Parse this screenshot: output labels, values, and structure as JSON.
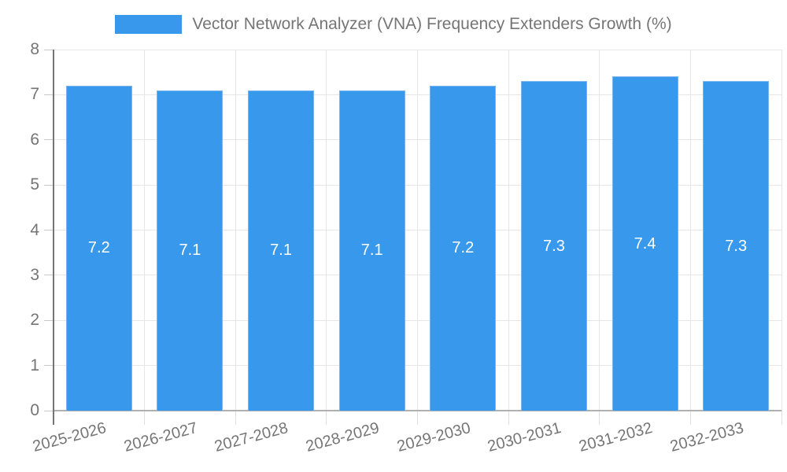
{
  "legend": {
    "label": "Vector Network Analyzer (VNA) Frequency Extenders Growth (%)"
  },
  "chart_data": {
    "type": "bar",
    "title": "",
    "categories": [
      "2025-2026",
      "2026-2027",
      "2027-2028",
      "2028-2029",
      "2029-2030",
      "2030-2031",
      "2031-2032",
      "2032-2033"
    ],
    "series": [
      {
        "name": "Vector Network Analyzer (VNA) Frequency Extenders Growth (%)",
        "values": [
          7.2,
          7.1,
          7.1,
          7.1,
          7.2,
          7.3,
          7.4,
          7.3
        ]
      }
    ],
    "bar_value_labels": [
      "7.2",
      "7.1",
      "7.1",
      "7.1",
      "7.2",
      "7.3",
      "7.4",
      "7.3"
    ],
    "xlabel": "",
    "ylabel": "",
    "ylim": [
      0,
      8
    ],
    "yticks": [
      0,
      1,
      2,
      3,
      4,
      5,
      6,
      7,
      8
    ],
    "grid": true,
    "legend_position": "top"
  },
  "colors": {
    "bar": "#3899ec",
    "bar_border": "#79b5f0",
    "grid": "#e6e6e6",
    "baseline": "#b0b0b0",
    "axis_line": "#757575",
    "y_tick": "#c9c9c9",
    "x_tick": "#e0e0e0",
    "axis_text": "#757575",
    "bar_value_text": "#ffffff",
    "background": "#ffffff"
  }
}
